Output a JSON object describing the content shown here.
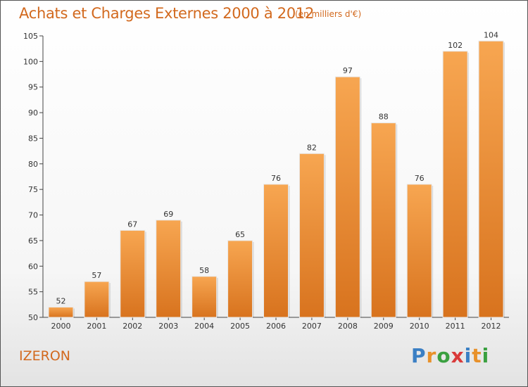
{
  "title": "Achats et Charges Externes 2000 à 2012",
  "subtitle": "(en milliers d'€)",
  "commune": "IZERON",
  "logo": {
    "letters": [
      "P",
      "r",
      "o",
      "x",
      "i",
      "t",
      "i"
    ],
    "colors": [
      "#3a7fc4",
      "#e8912a",
      "#3aa040",
      "#d93a3a",
      "#3a7fc4",
      "#e8912a",
      "#3aa040"
    ]
  },
  "colors": {
    "bar_light": "#f7a651",
    "bar_dark": "#d8731e",
    "text_accent": "#d2691e"
  },
  "chart_data": {
    "type": "bar",
    "title": "Achats et Charges Externes 2000 à 2012",
    "subtitle": "(en milliers d'€)",
    "categories": [
      "2000",
      "2001",
      "2002",
      "2003",
      "2004",
      "2005",
      "2006",
      "2007",
      "2008",
      "2009",
      "2010",
      "2011",
      "2012"
    ],
    "values": [
      52,
      57,
      67,
      69,
      58,
      65,
      76,
      82,
      97,
      88,
      76,
      102,
      104
    ],
    "ylim": [
      50,
      105
    ],
    "yticks": [
      50,
      55,
      60,
      65,
      70,
      75,
      80,
      85,
      90,
      95,
      100,
      105
    ],
    "grid": false,
    "data_labels": true
  }
}
